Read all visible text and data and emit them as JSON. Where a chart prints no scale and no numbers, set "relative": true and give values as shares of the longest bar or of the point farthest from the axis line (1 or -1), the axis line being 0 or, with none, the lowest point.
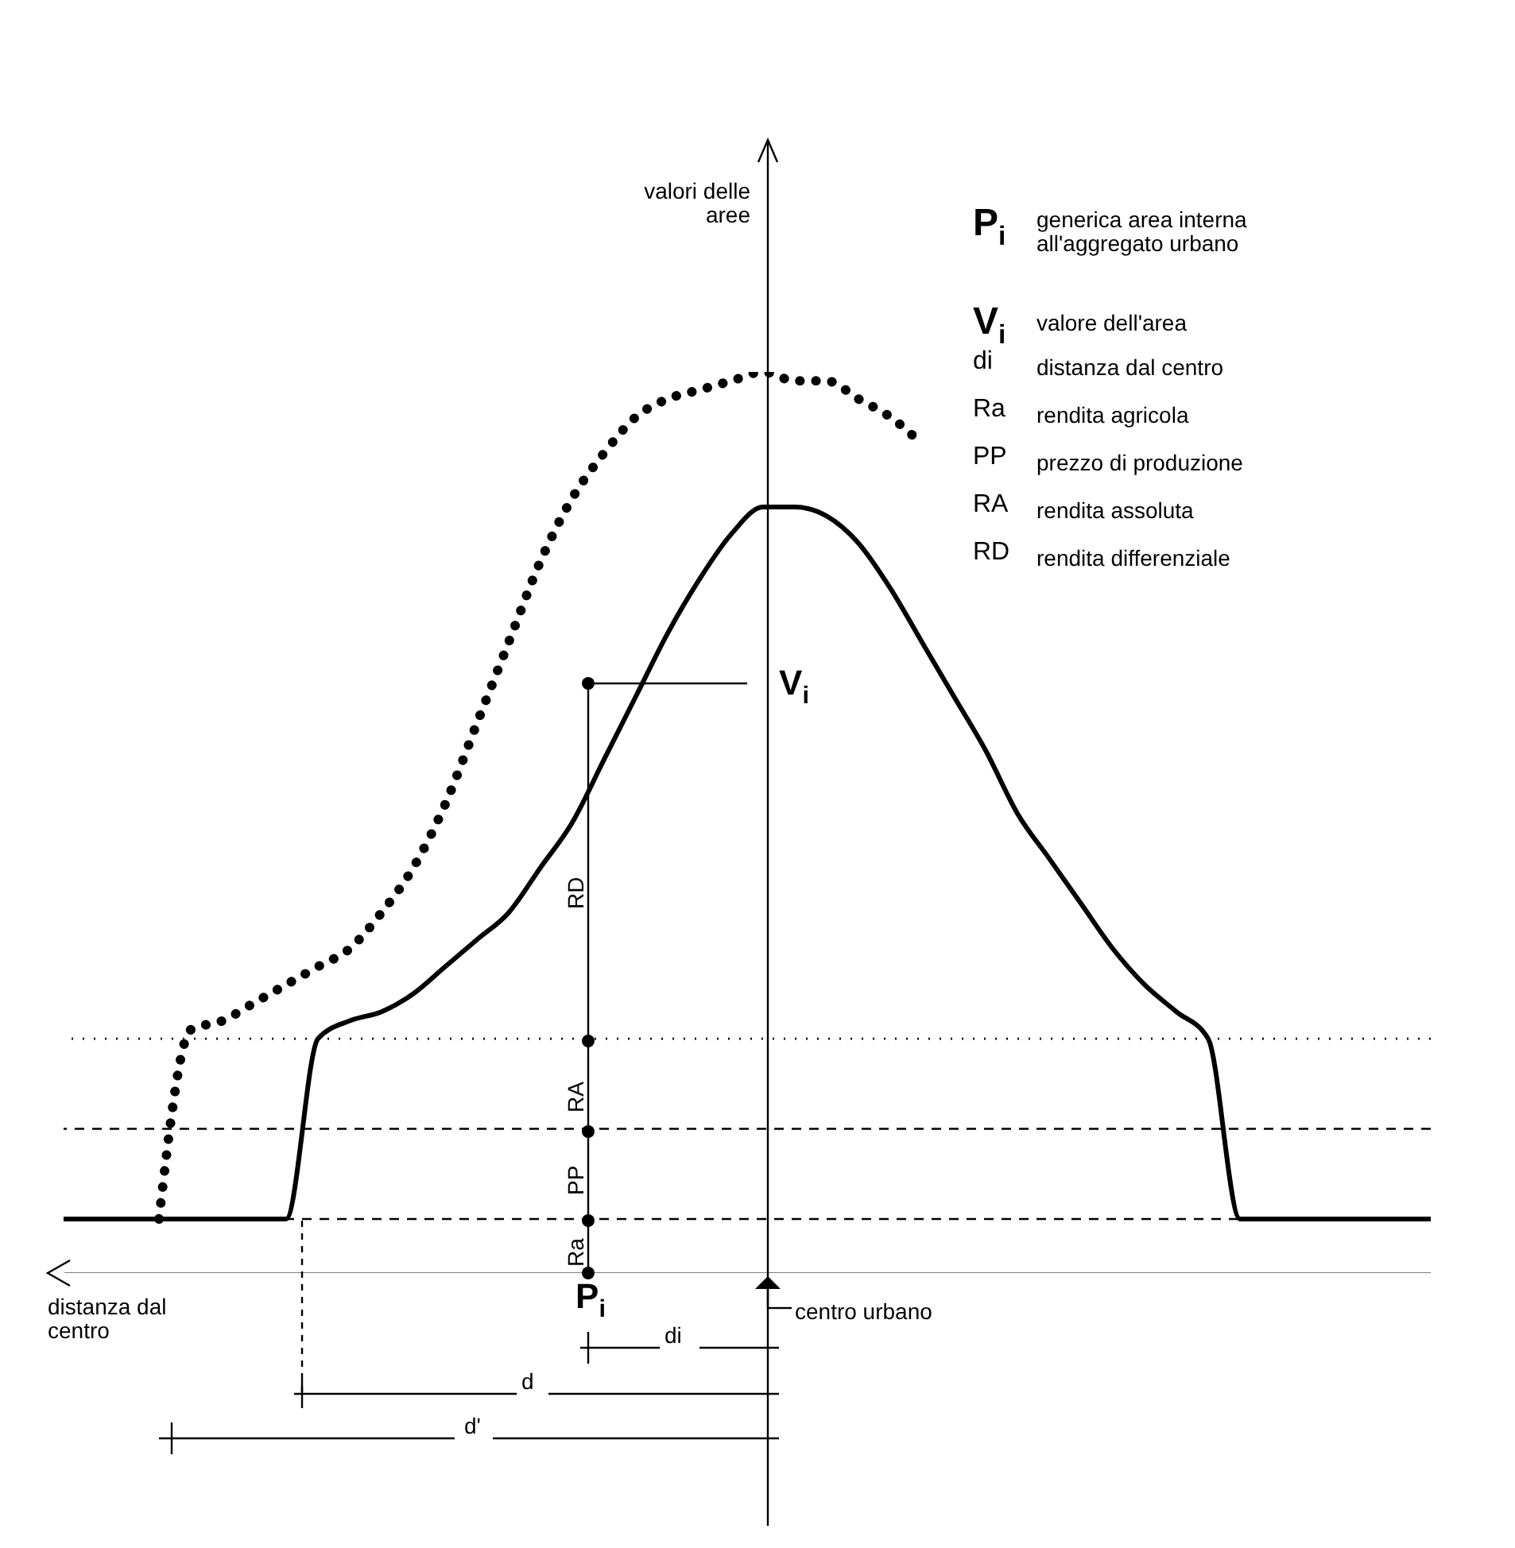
{
  "chart_data": {
    "type": "line",
    "relative": true,
    "grid": false,
    "legend": false,
    "categories": [
      null,
      null,
      null,
      null,
      null,
      null,
      null,
      null,
      null,
      null,
      null,
      null,
      null,
      null,
      null,
      null,
      null,
      null,
      null,
      null,
      null,
      null,
      null,
      null,
      null,
      null,
      null,
      null,
      null,
      null,
      null,
      null,
      null,
      null,
      null,
      null,
      null,
      null,
      null,
      null,
      null,
      null,
      null,
      null
    ],
    "series": [
      {
        "color": "#000000",
        "line_style": "solid",
        "values": [
          0.06,
          0.06,
          0.06,
          0.06,
          0.06,
          0.06,
          0.06,
          0.06,
          0.26,
          0.28,
          0.29,
          0.31,
          0.34,
          0.37,
          0.4,
          0.45,
          0.5,
          0.57,
          0.64,
          0.71,
          0.77,
          0.82,
          0.85,
          0.85,
          0.84,
          0.81,
          0.76,
          0.7,
          0.64,
          0.58,
          0.51,
          0.46,
          0.41,
          0.36,
          0.32,
          0.29,
          0.26,
          0.06,
          0.06,
          0.06,
          0.06,
          0.06,
          0.06,
          0.06
        ]
      },
      {
        "color": "#000000",
        "line_style": "dotted",
        "values": [
          null,
          null,
          null,
          0.06,
          0.27,
          0.28,
          0.3,
          0.32,
          0.34,
          0.36,
          0.4,
          0.45,
          0.52,
          0.61,
          0.7,
          0.79,
          0.86,
          0.91,
          0.95,
          0.97,
          0.98,
          0.99,
          1,
          0.99,
          0.99,
          0.97,
          0.95,
          0.92,
          null,
          null,
          null,
          null,
          null,
          null,
          null,
          null,
          null,
          null,
          null,
          null,
          null,
          null,
          null,
          null
        ]
      }
    ],
    "ref_lines": [
      {
        "axis": "y",
        "value": 0.26,
        "line_style": "dotted"
      },
      {
        "axis": "y",
        "value": 0.16,
        "line_style": "dashed"
      },
      {
        "axis": "y",
        "value": 0.06,
        "line_style": "dashed"
      }
    ],
    "annotations": [
      "valori delle aree",
      "distanza dal centro",
      "centro urbano",
      "P$_{i}$",
      "V$_{i}$",
      "RD",
      "RA",
      "PP",
      "Ra",
      "di",
      "d",
      "d'",
      "P$_{i}$",
      "generica area interna all'aggregato urbano",
      "V$_{i}$",
      "valore dell'area",
      "di",
      "distanza dal centro",
      "Ra",
      "rendita agricola",
      "PP",
      "prezzo di produzione",
      "RA",
      "rendita assoluta",
      "RD",
      "rendita differenziale"
    ]
  }
}
